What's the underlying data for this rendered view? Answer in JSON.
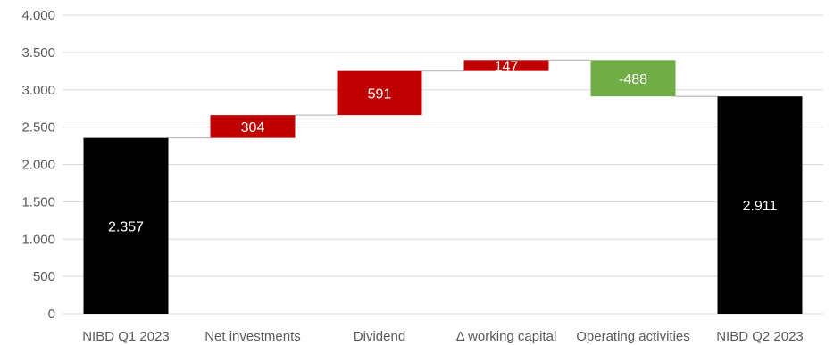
{
  "chart_data": {
    "type": "bar",
    "subtype": "waterfall",
    "categories": [
      "NIBD Q1 2023",
      "Net investments",
      "Dividend",
      "Δ working capital",
      "Operating activities",
      "NIBD Q2 2023"
    ],
    "steps": [
      {
        "category": "NIBD Q1 2023",
        "kind": "total",
        "value": 2357,
        "label": "2.357"
      },
      {
        "category": "Net investments",
        "kind": "delta",
        "value": 304,
        "label": "304"
      },
      {
        "category": "Dividend",
        "kind": "delta",
        "value": 591,
        "label": "591"
      },
      {
        "category": "Δ working capital",
        "kind": "delta",
        "value": 147,
        "label": "147"
      },
      {
        "category": "Operating activities",
        "kind": "delta",
        "value": -488,
        "label": "-488"
      },
      {
        "category": "NIBD Q2 2023",
        "kind": "total",
        "value": 2911,
        "label": "2.911"
      }
    ],
    "ylim": [
      0,
      4000
    ],
    "yticks": [
      0,
      500,
      1000,
      1500,
      2000,
      2500,
      3000,
      3500,
      4000
    ],
    "ytick_labels": [
      "0",
      "500",
      "1.000",
      "1.500",
      "2.000",
      "2.500",
      "3.000",
      "3.500",
      "4.000"
    ],
    "grid": true,
    "colors": {
      "total": "#000000",
      "increase": "#c00000",
      "decrease": "#70ad47",
      "grid": "#d9d9d9",
      "connector": "#bfbfbf",
      "text": "#595959"
    }
  }
}
